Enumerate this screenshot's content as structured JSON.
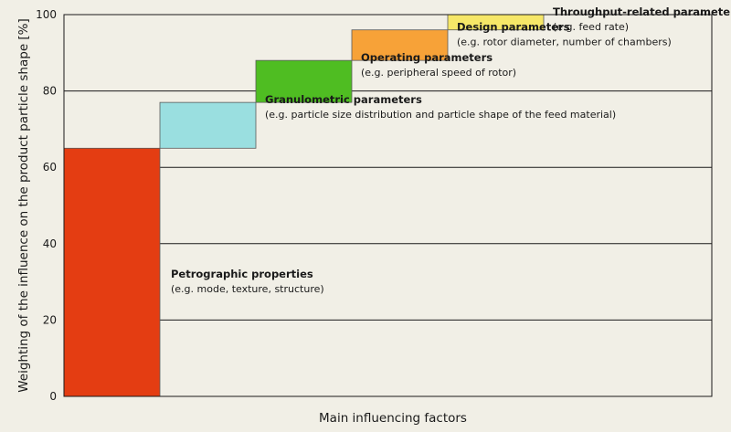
{
  "chart_data": {
    "type": "bar",
    "subtype": "waterfall",
    "xlabel": "Main influencing factors",
    "ylabel": "Weighting of the influence on the product particle shape [%]",
    "ylim": [
      0,
      100
    ],
    "yticks": [
      "0",
      "20",
      "40",
      "60",
      "80",
      "100"
    ],
    "grid": true,
    "bars": [
      {
        "name": "Petrographic properties",
        "detail": "(e.g. mode, texture, structure)",
        "start": 0,
        "end": 65,
        "color": "#e43d12"
      },
      {
        "name": "Granulometric parameters",
        "detail": "(e.g. particle size distribution and particle shape of the feed material)",
        "start": 65,
        "end": 77,
        "color": "#9adfe0"
      },
      {
        "name": "Operating parameters",
        "detail": "(e.g. peripheral speed of rotor)",
        "start": 77,
        "end": 88,
        "color": "#4fbd22"
      },
      {
        "name": "Design parameters",
        "detail": "(e.g. rotor diameter, number of chambers)",
        "start": 88,
        "end": 96,
        "color": "#f7a238"
      },
      {
        "name": "Throughput-related parameters",
        "detail": "(e.g. feed rate)",
        "start": 96,
        "end": 100,
        "color": "#f6e768"
      }
    ]
  }
}
